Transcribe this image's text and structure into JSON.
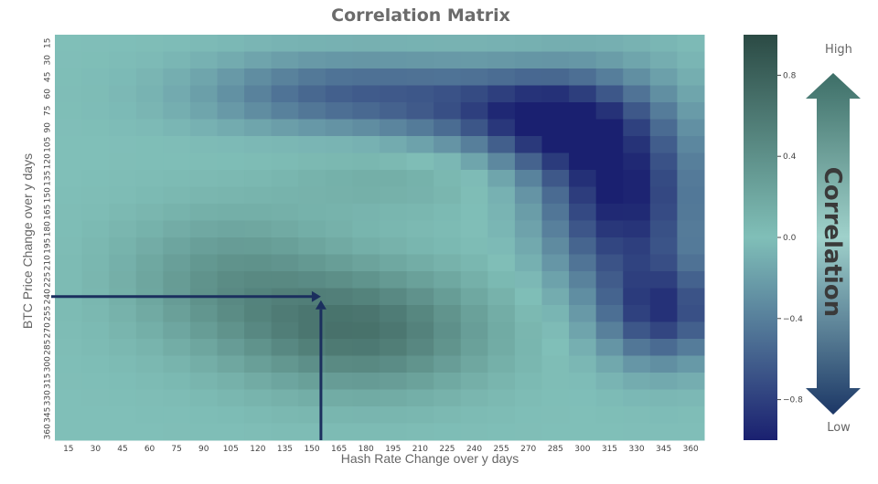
{
  "chart_data": {
    "type": "heatmap",
    "title": "Correlation Matrix",
    "xlabel": "Hash Rate Change over y days",
    "ylabel": "BTC Price Change over y days",
    "x": [
      15,
      30,
      45,
      60,
      75,
      90,
      105,
      120,
      135,
      150,
      165,
      180,
      195,
      210,
      225,
      240,
      255,
      270,
      285,
      300,
      315,
      330,
      345,
      360
    ],
    "y": [
      15,
      30,
      45,
      60,
      75,
      90,
      105,
      120,
      135,
      150,
      165,
      180,
      195,
      210,
      225,
      240,
      255,
      270,
      285,
      300,
      315,
      330,
      345,
      360
    ],
    "colorbar": {
      "ticks": [
        0.8,
        0.4,
        0.0,
        -0.4,
        -0.8
      ],
      "tick_labels": [
        "0.8",
        "0.4",
        "0.0",
        "−0.4",
        "−0.8"
      ],
      "range": [
        -1.0,
        1.0
      ],
      "label": "Correlation",
      "high_label": "High",
      "low_label": "Low"
    },
    "highlight": {
      "x": 155,
      "y": 240
    }
  },
  "colors": {
    "high": "#2b4a44",
    "mid": "#80bfb8",
    "low": "#1a2070",
    "arrow": "#1b2f5e",
    "gradient_arrow_top": "#3d6e67",
    "gradient_arrow_mid": "#9fd1cb",
    "gradient_arrow_bottom": "#1c3766"
  }
}
